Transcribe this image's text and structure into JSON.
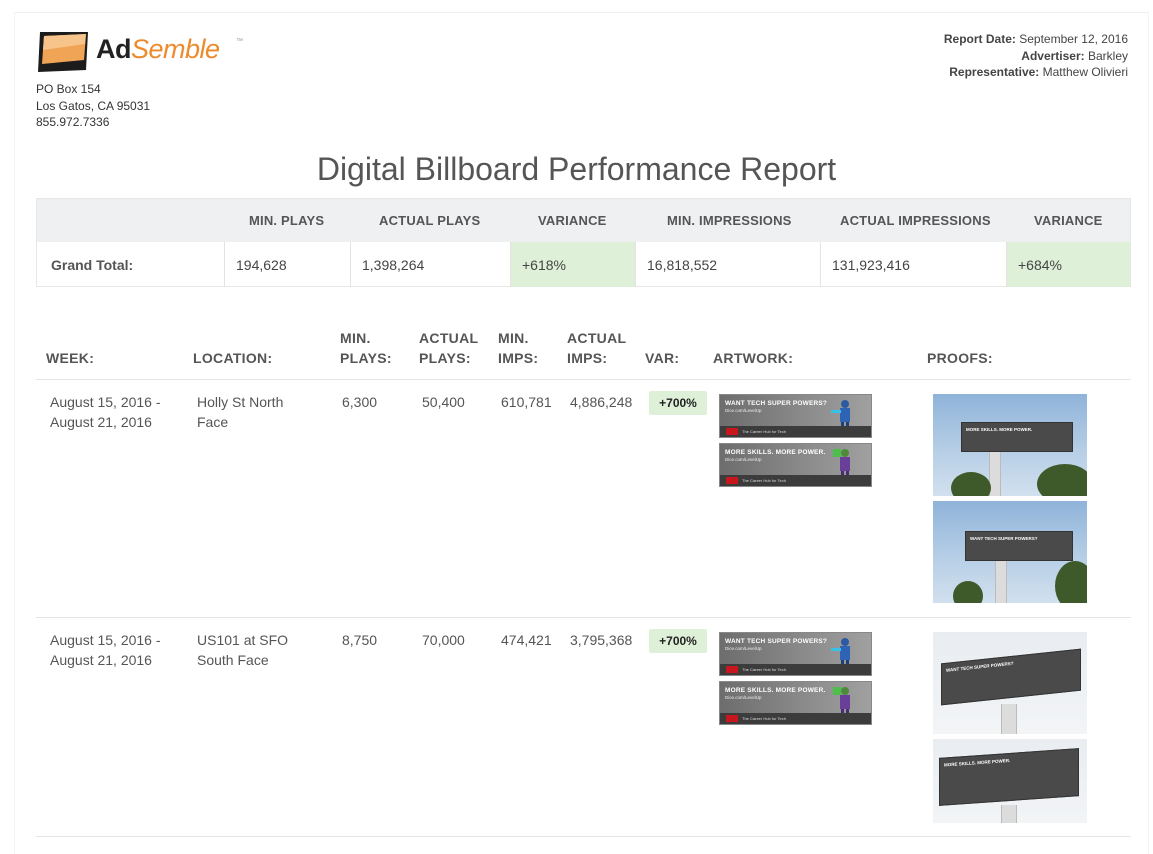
{
  "brand": {
    "name_part1": "Ad",
    "name_part2": "Semble",
    "trademark": "™"
  },
  "address": {
    "line1": "PO Box 154",
    "line2": "Los Gatos, CA 95031",
    "phone": "855.972.7336"
  },
  "meta": {
    "report_date_label": "Report Date:",
    "report_date": "September 12, 2016",
    "advertiser_label": "Advertiser:",
    "advertiser": "Barkley",
    "representative_label": "Representative:",
    "representative": "Matthew Olivieri"
  },
  "title": "Digital Billboard Performance Report",
  "summary": {
    "headers": [
      "MIN. PLAYS",
      "ACTUAL PLAYS",
      "VARIANCE",
      "MIN. IMPRESSIONS",
      "ACTUAL IMPRESSIONS",
      "VARIANCE"
    ],
    "row_label": "Grand Total:",
    "min_plays": "194,628",
    "actual_plays": "1,398,264",
    "plays_variance": "+618%",
    "min_impressions": "16,818,552",
    "actual_impressions": "131,923,416",
    "impressions_variance": "+684%"
  },
  "detail": {
    "headers": {
      "week": "WEEK:",
      "location": "LOCATION:",
      "min_plays_1": "MIN.",
      "min_plays_2": "PLAYS:",
      "actual_plays_1": "ACTUAL",
      "actual_plays_2": "PLAYS:",
      "min_imps_1": "MIN.",
      "min_imps_2": "IMPS:",
      "actual_imps_1": "ACTUAL",
      "actual_imps_2": "IMPS:",
      "var": "VAR:",
      "artwork": "ARTWORK:",
      "proofs": "PROOFS:"
    },
    "rows": [
      {
        "week_start": "August 15, 2016 -",
        "week_end": "August 21, 2016",
        "location_1": "Holly St North",
        "location_2": "Face",
        "min_plays": "6,300",
        "actual_plays": "50,400",
        "min_imps": "610,781",
        "actual_imps": "4,886,248",
        "var": "+700%"
      },
      {
        "week_start": "August 15, 2016 -",
        "week_end": "August 21, 2016",
        "location_1": "US101 at SFO",
        "location_2": "South Face",
        "min_plays": "8,750",
        "actual_plays": "70,000",
        "min_imps": "474,421",
        "actual_imps": "3,795,368",
        "var": "+700%"
      }
    ]
  },
  "artwork": {
    "ad1_headline": "WANT TECH SUPER POWERS?",
    "ad2_headline": "MORE SKILLS. MORE POWER.",
    "url": "Dice.com/LevelUp",
    "tagline": "The Career Hub for Tech"
  },
  "colors": {
    "brand_orange": "#ee8a2b",
    "variance_green": "#dff0d8",
    "header_gray": "#eef0f2"
  }
}
